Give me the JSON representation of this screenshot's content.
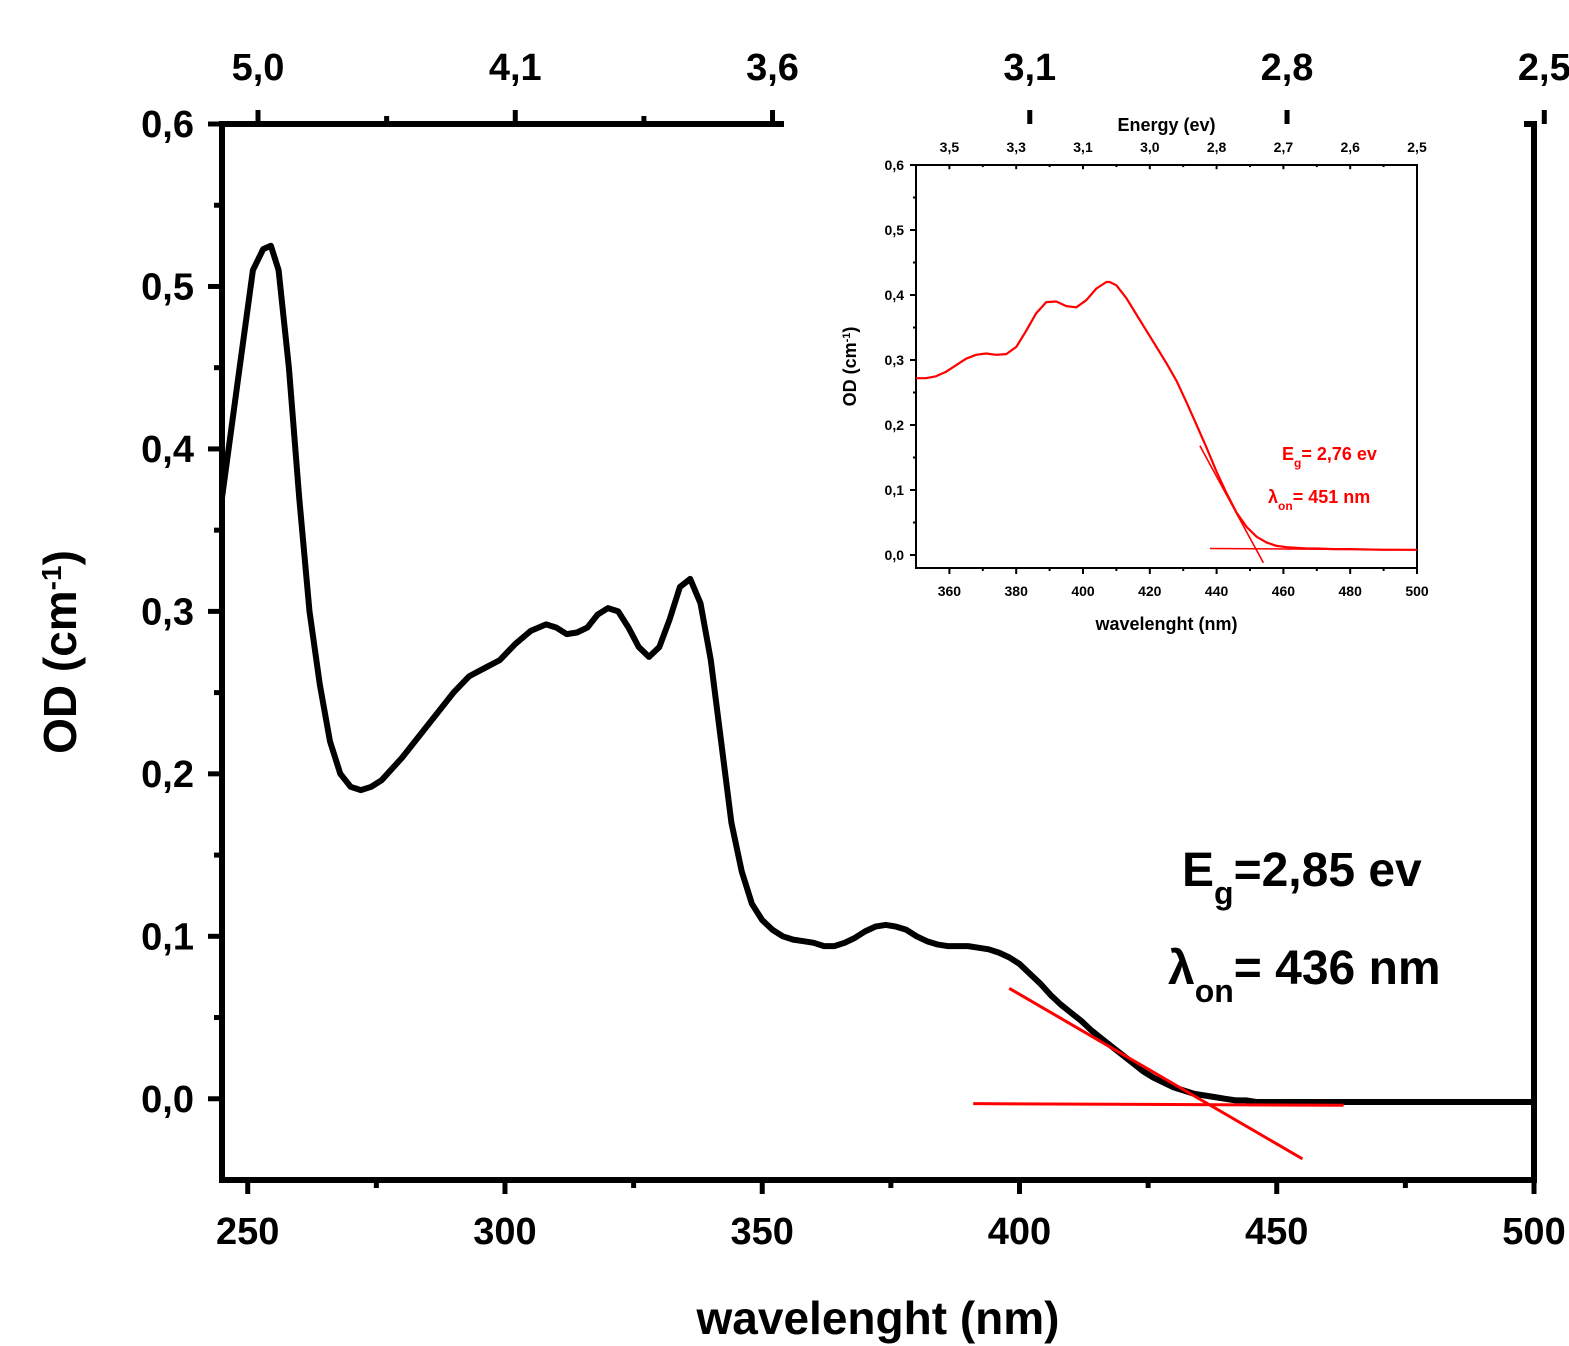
{
  "chart_data": [
    {
      "type": "line",
      "xlabel": "wavelenght (nm)",
      "ylabel": "OD (cm⁻¹)",
      "xlim": [
        245,
        500
      ],
      "ylim": [
        -0.05,
        0.6
      ],
      "xticks": [
        250,
        300,
        350,
        400,
        450,
        500
      ],
      "xtick_labels": [
        "250",
        "300",
        "350",
        "400",
        "450",
        "500"
      ],
      "yticks": [
        0.0,
        0.1,
        0.2,
        0.3,
        0.4,
        0.5,
        0.6
      ],
      "ytick_labels": [
        "0,0",
        "0,1",
        "0,2",
        "0,3",
        "0,4",
        "0,5",
        "0,6"
      ],
      "top_axis": {
        "ticks_nm": [
          252,
          302,
          352,
          402,
          452,
          502
        ],
        "tick_labels": [
          "5,0",
          "4,1",
          "3,6",
          "3,1",
          "2,8",
          "2,5"
        ]
      },
      "series": [
        {
          "color": "#000000",
          "x": [
            245,
            248,
            251,
            253,
            254.5,
            256,
            258,
            260,
            262,
            264,
            266,
            268,
            270,
            272,
            274,
            276,
            280,
            285,
            290,
            293,
            296,
            299,
            302,
            305,
            308,
            310,
            312,
            314,
            316,
            318,
            320,
            322,
            324,
            326,
            328,
            330,
            332,
            334,
            336,
            338,
            340,
            342,
            344,
            346,
            348,
            350,
            352,
            354,
            356,
            358,
            360,
            362,
            364,
            366,
            368,
            370,
            372,
            374,
            376,
            378,
            380,
            382,
            384,
            386,
            388,
            390,
            392,
            394,
            396,
            398,
            400,
            402,
            404,
            406,
            408,
            410,
            412,
            414,
            416,
            418,
            420,
            422,
            424,
            426,
            428,
            430,
            432,
            434,
            436,
            438,
            440,
            442,
            444,
            446,
            448,
            450,
            455,
            460,
            470,
            480,
            490,
            500
          ],
          "y": [
            0.37,
            0.44,
            0.51,
            0.523,
            0.525,
            0.51,
            0.45,
            0.37,
            0.3,
            0.255,
            0.22,
            0.2,
            0.192,
            0.19,
            0.192,
            0.196,
            0.21,
            0.23,
            0.25,
            0.26,
            0.265,
            0.27,
            0.28,
            0.288,
            0.292,
            0.29,
            0.286,
            0.287,
            0.29,
            0.298,
            0.302,
            0.3,
            0.29,
            0.278,
            0.272,
            0.278,
            0.295,
            0.315,
            0.32,
            0.305,
            0.27,
            0.22,
            0.17,
            0.14,
            0.12,
            0.11,
            0.104,
            0.1,
            0.098,
            0.097,
            0.096,
            0.094,
            0.094,
            0.096,
            0.099,
            0.103,
            0.106,
            0.107,
            0.106,
            0.104,
            0.1,
            0.097,
            0.095,
            0.094,
            0.094,
            0.094,
            0.093,
            0.092,
            0.09,
            0.087,
            0.083,
            0.077,
            0.071,
            0.064,
            0.058,
            0.053,
            0.048,
            0.042,
            0.037,
            0.032,
            0.027,
            0.022,
            0.017,
            0.013,
            0.01,
            0.007,
            0.005,
            0.003,
            0.002,
            0.001,
            0.0,
            -0.001,
            -0.001,
            -0.002,
            -0.002,
            -0.002,
            -0.002,
            -0.002,
            -0.002,
            -0.002,
            -0.002,
            -0.002
          ]
        }
      ],
      "fit_lines": [
        {
          "color": "#ff0000",
          "x": [
            398,
            455
          ],
          "y": [
            0.068,
            -0.037
          ]
        },
        {
          "color": "#ff0000",
          "x": [
            391,
            463
          ],
          "y": [
            -0.003,
            -0.004
          ]
        }
      ],
      "annotations": [
        {
          "main": "E",
          "sub": "g",
          "rest": "=2,85 ev"
        },
        {
          "main": "λ",
          "sub": "on",
          "rest": "= 436 nm"
        }
      ]
    },
    {
      "type": "line",
      "title": "Energy (ev)",
      "xlabel": "wavelenght (nm)",
      "ylabel": "OD (cm⁻¹)",
      "xlim": [
        350,
        500
      ],
      "ylim": [
        -0.02,
        0.6
      ],
      "xticks": [
        360,
        380,
        400,
        420,
        440,
        460,
        480,
        500
      ],
      "xtick_labels": [
        "360",
        "380",
        "400",
        "420",
        "440",
        "460",
        "480",
        "500"
      ],
      "yticks": [
        0.0,
        0.1,
        0.2,
        0.3,
        0.4,
        0.5,
        0.6
      ],
      "ytick_labels": [
        "0,0",
        "0,1",
        "0,2",
        "0,3",
        "0,4",
        "0,5",
        "0,6"
      ],
      "top_axis": {
        "ticks_nm": [
          360,
          380,
          400,
          420,
          440,
          460,
          480,
          500
        ],
        "tick_labels": [
          "3,5",
          "3,3",
          "3,1",
          "3,0",
          "2,8",
          "2,7",
          "2,6",
          "2,5"
        ]
      },
      "series": [
        {
          "color": "#ff0000",
          "x": [
            350,
            353,
            356,
            359,
            362,
            365,
            368,
            371,
            374,
            377,
            380,
            383,
            386,
            389,
            392,
            395,
            398,
            401,
            404,
            407,
            408,
            410,
            413,
            416,
            419,
            422,
            425,
            428,
            431,
            434,
            437,
            440,
            443,
            446,
            449,
            452,
            455,
            458,
            461,
            464,
            467,
            470,
            475,
            480,
            490,
            500
          ],
          "y": [
            0.272,
            0.272,
            0.275,
            0.282,
            0.292,
            0.302,
            0.308,
            0.31,
            0.308,
            0.309,
            0.32,
            0.345,
            0.372,
            0.389,
            0.39,
            0.383,
            0.381,
            0.392,
            0.41,
            0.42,
            0.42,
            0.415,
            0.395,
            0.37,
            0.345,
            0.32,
            0.295,
            0.268,
            0.235,
            0.2,
            0.165,
            0.128,
            0.095,
            0.065,
            0.043,
            0.028,
            0.019,
            0.014,
            0.012,
            0.011,
            0.01,
            0.01,
            0.009,
            0.009,
            0.008,
            0.008
          ]
        }
      ],
      "fit_lines": [
        {
          "color": "#ff0000",
          "x": [
            435,
            454
          ],
          "y": [
            0.168,
            -0.012
          ]
        },
        {
          "color": "#ff0000",
          "x": [
            438,
            500
          ],
          "y": [
            0.01,
            0.008
          ]
        }
      ],
      "annotations": [
        {
          "main": "E",
          "sub": "g",
          "rest": "= 2,76 ev"
        },
        {
          "main": "λ",
          "sub": "on",
          "rest": "= 451 nm"
        }
      ]
    }
  ]
}
